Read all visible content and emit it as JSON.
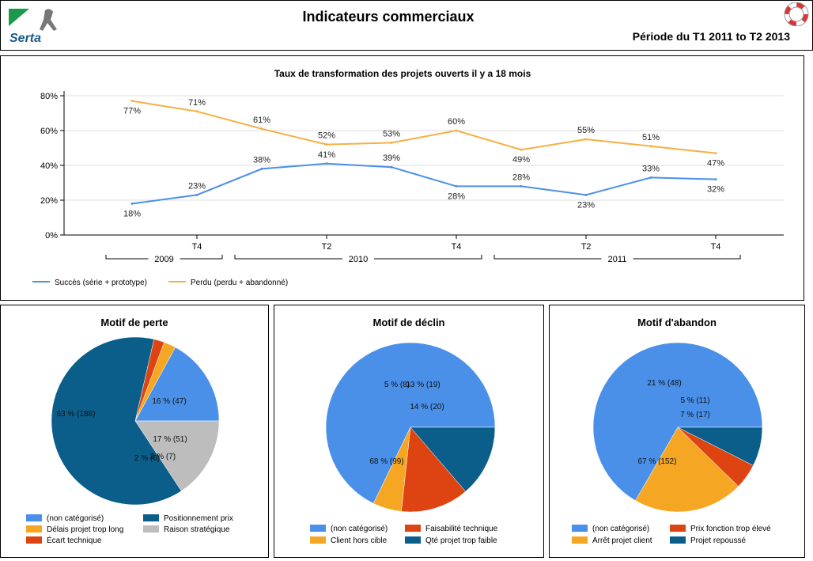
{
  "header": {
    "brand": "Serta",
    "title": "Indicateurs commerciaux",
    "period": "Période du  T1 2011 to T2 2013"
  },
  "colors": {
    "blue": "#4A90E8",
    "orange": "#F5B041",
    "navy": "#0B5E8A",
    "red": "#DD4411",
    "gray": "#BDBDBD",
    "amber": "#F5A623"
  },
  "chart_data": [
    {
      "type": "line",
      "title": "Taux de transformation des projets ouverts il y a 18 mois",
      "x_tick_labels": [
        "T4",
        "T2",
        "T4",
        "T2",
        "T4"
      ],
      "x_groups": [
        "2009",
        "2010",
        "2011"
      ],
      "y_ticks": [
        "0%",
        "20%",
        "40%",
        "60%",
        "80%"
      ],
      "ylim": [
        0,
        80
      ],
      "series": [
        {
          "name": "Succès (série + prototype)",
          "values": [
            18,
            23,
            38,
            41,
            39,
            28,
            28,
            23,
            33,
            32
          ],
          "labels": [
            "18%",
            "23%",
            "38%",
            "41%",
            "39%",
            "28%",
            "28%",
            "23%",
            "33%",
            "32%"
          ]
        },
        {
          "name": "Perdu (perdu + abandonné)",
          "values": [
            77,
            71,
            61,
            52,
            53,
            60,
            49,
            55,
            51,
            47
          ],
          "labels": [
            "77%",
            "71%",
            "61%",
            "52%",
            "53%",
            "60%",
            "49%",
            "55%",
            "51%",
            "47%"
          ]
        }
      ]
    },
    {
      "type": "pie",
      "title": "Motif de perte",
      "slices": [
        {
          "name": "(non catégorisé)",
          "value": 51,
          "label": "17 % (51)"
        },
        {
          "name": "Délais projet trop long",
          "value": 7,
          "label": "2 % (7)"
        },
        {
          "name": "Écart technique",
          "value": 6,
          "label": "2 % (6)"
        },
        {
          "name": "Positionnement prix",
          "value": 188,
          "label": "63 % (188)"
        },
        {
          "name": "Raison stratégique",
          "value": 47,
          "label": "16 % (47)"
        }
      ]
    },
    {
      "type": "pie",
      "title": "Motif de déclin",
      "slices": [
        {
          "name": "(non catégorisé)",
          "value": 99,
          "label": "68 % (99)"
        },
        {
          "name": "Client hors cible",
          "value": 8,
          "label": "5 % (8)"
        },
        {
          "name": "Faisabilité technique",
          "value": 19,
          "label": "13 % (19)"
        },
        {
          "name": "Qté projet trop faible",
          "value": 20,
          "label": "14 % (20)"
        }
      ]
    },
    {
      "type": "pie",
      "title": "Motif d'abandon",
      "slices": [
        {
          "name": "(non catégorisé)",
          "value": 152,
          "label": "67 % (152)"
        },
        {
          "name": "Arrêt projet client",
          "value": 48,
          "label": "21 % (48)"
        },
        {
          "name": "Prix fonction trop élevé",
          "value": 11,
          "label": "5 % (11)"
        },
        {
          "name": "Projet repoussé",
          "value": 17,
          "label": "7 % (17)"
        }
      ]
    }
  ]
}
